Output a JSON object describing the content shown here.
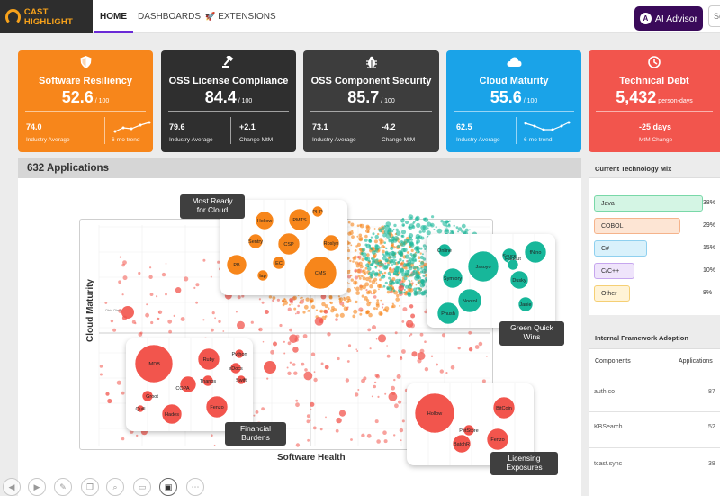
{
  "app": {
    "logo_text": "CAST HIGHLIGHT"
  },
  "nav": {
    "home": "HOME",
    "dashboards": "DASHBOARDS",
    "extensions": "EXTENSIONS",
    "ai_advisor": "AI Advisor",
    "search_placeholder": "Se"
  },
  "kpis": [
    {
      "title": "Software Resiliency",
      "value": "52.6",
      "unit": "/ 100",
      "left_value": "74.0",
      "left_label": "Industry Average",
      "right_value": "",
      "right_label": "6-mo trend",
      "color": "#f7861b",
      "icon": "shield-icon"
    },
    {
      "title": "OSS License Compliance",
      "value": "84.4",
      "unit": "/ 100",
      "left_value": "79.6",
      "left_label": "Industry Average",
      "right_value": "+2.1",
      "right_label": "Change MtM",
      "color": "#2f2f2f",
      "icon": "gavel-icon"
    },
    {
      "title": "OSS Component Security",
      "value": "85.7",
      "unit": "/ 100",
      "left_value": "73.1",
      "left_label": "Industry Average",
      "right_value": "-4.2",
      "right_label": "Change MtM",
      "color": "#3d3d3d",
      "icon": "bug-icon"
    },
    {
      "title": "Cloud Maturity",
      "value": "55.6",
      "unit": "/ 100",
      "left_value": "62.5",
      "left_label": "Industry Average",
      "right_value": "",
      "right_label": "6-mo trend",
      "color": "#1aa3e8",
      "icon": "cloud-icon"
    },
    {
      "title": "Technical Debt",
      "value": "5,432",
      "unit": "person-days",
      "center_value": "-25 days",
      "center_label": "MtM Change",
      "color": "#f2554d",
      "icon": "clock-icon"
    }
  ],
  "main": {
    "title": "632 Applications",
    "y_axis": "Cloud Maturity",
    "x_axis": "Software Health",
    "tags": {
      "cloud_ready": "Most Ready\nfor Cloud",
      "green_wins": "Green Quick\nWins",
      "financial": "Financial\nBurdens",
      "licensing": "Licensing\nExposures"
    },
    "inner_label": "Citrix Client"
  },
  "clusters": {
    "cloud_ready": [
      "Hollow",
      "PMTS",
      "PHP",
      "Sentry",
      "CSP",
      "Roslyn",
      "PB",
      "EC",
      "CMS",
      "lap"
    ],
    "green_wins": [
      "Online",
      "Jssoyo",
      "Sauce",
      "Symtory",
      "Hadout",
      "fNino",
      "Nootol",
      "Dusky",
      "Phush",
      "Janie"
    ],
    "financial": [
      "IMDB",
      "Ruby",
      "Python",
      "Thanos",
      "COPA",
      "eDocs",
      "Swift",
      "Groot",
      "Quill",
      "Hades",
      "Fenzo"
    ],
    "licensing": [
      "Hollow",
      "BitCoin",
      "PetStore",
      "BatchR",
      "Fenzo"
    ]
  },
  "tech_mix": {
    "title": "Current Technology Mix",
    "items": [
      {
        "label": "Java",
        "pct": "38%",
        "share": 0.38,
        "color": "#d4f5e4",
        "border": "#79d8a8"
      },
      {
        "label": "COBOL",
        "pct": "29%",
        "share": 0.29,
        "color": "#fde5d4",
        "border": "#f5b38b"
      },
      {
        "label": "C#",
        "pct": "15%",
        "share": 0.15,
        "color": "#d9f1fb",
        "border": "#8fd0ef"
      },
      {
        "label": "C/C++",
        "pct": "10%",
        "share": 0.1,
        "color": "#efe4fb",
        "border": "#c6a6ee"
      },
      {
        "label": "Other",
        "pct": "8%",
        "share": 0.08,
        "color": "#fff3d6",
        "border": "#f5cf74"
      }
    ]
  },
  "frameworks": {
    "title": "Internal Framework Adoption",
    "col_components": "Components",
    "col_applications": "Applications",
    "rows": [
      {
        "name": "auth.co",
        "count": "87"
      },
      {
        "name": "KBSearch",
        "count": "52"
      },
      {
        "name": "tcast.sync",
        "count": "38"
      }
    ]
  },
  "colors": {
    "orange": "#f7861b",
    "teal": "#17b79a",
    "red": "#f2554d",
    "accent": "#6a2ad6"
  }
}
